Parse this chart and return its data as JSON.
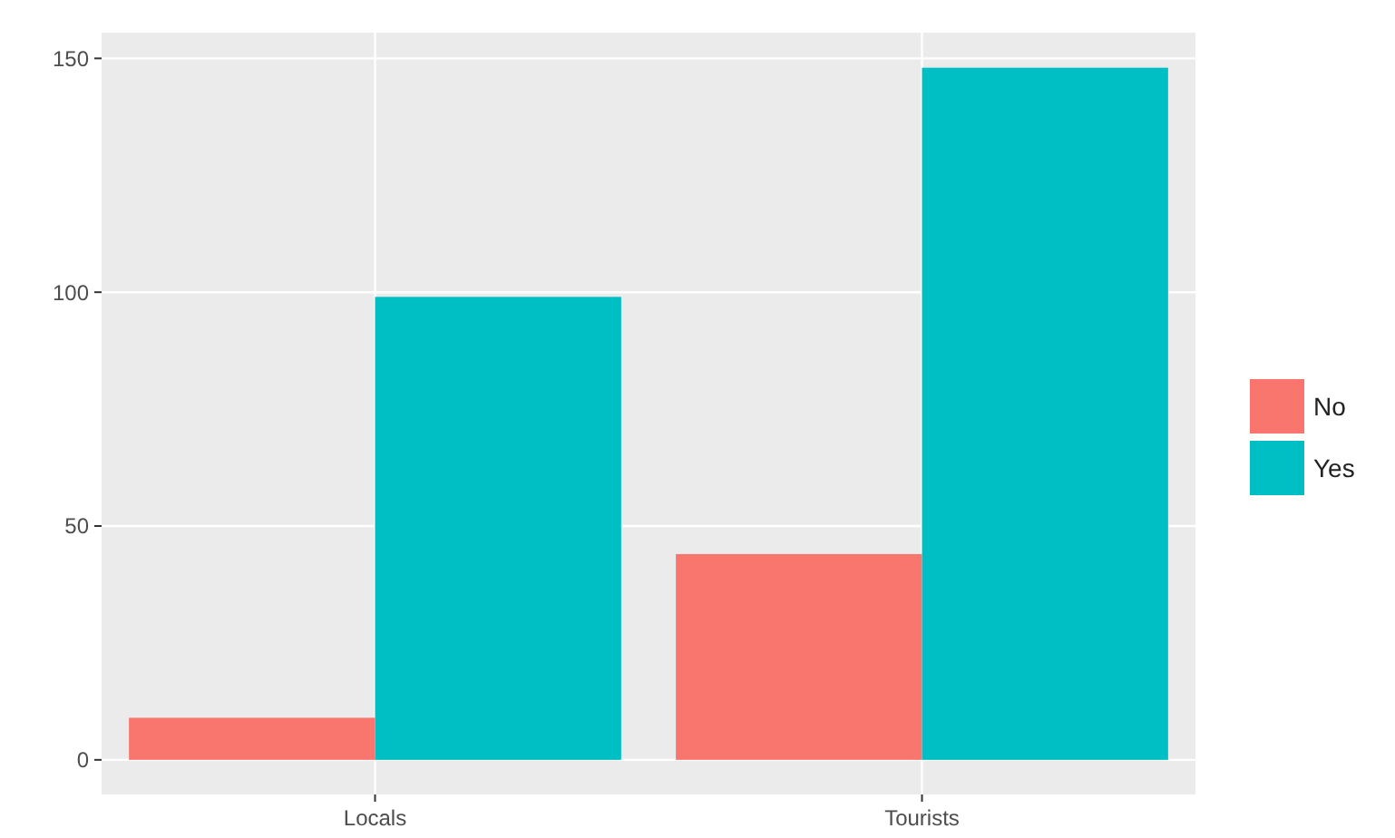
{
  "chart_data": {
    "type": "bar",
    "categories": [
      "Locals",
      "Tourists"
    ],
    "series": [
      {
        "name": "No",
        "color": "#f8766d",
        "values": [
          9,
          44
        ]
      },
      {
        "name": "Yes",
        "color": "#00bfc4",
        "values": [
          99,
          148
        ]
      }
    ],
    "ylim": [
      -7.4,
      155.5
    ],
    "yticks": [
      0,
      50,
      100,
      150
    ],
    "grid": true,
    "legend": "right"
  }
}
